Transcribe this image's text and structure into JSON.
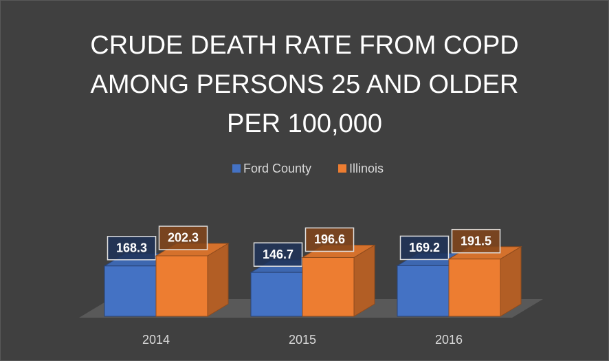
{
  "chart_data": {
    "type": "bar3d",
    "title": "CRUDE DEATH RATE FROM COPD AMONG PERSONS 25 AND OLDER PER 100,000",
    "categories": [
      "2014",
      "2015",
      "2016"
    ],
    "series": [
      {
        "name": "Ford County",
        "color": "#4472c4",
        "values": [
          168.3,
          146.7,
          169.2
        ]
      },
      {
        "name": "Illinois",
        "color": "#ed7d31",
        "values": [
          202.3,
          196.6,
          191.5
        ]
      }
    ],
    "legend": "top"
  }
}
